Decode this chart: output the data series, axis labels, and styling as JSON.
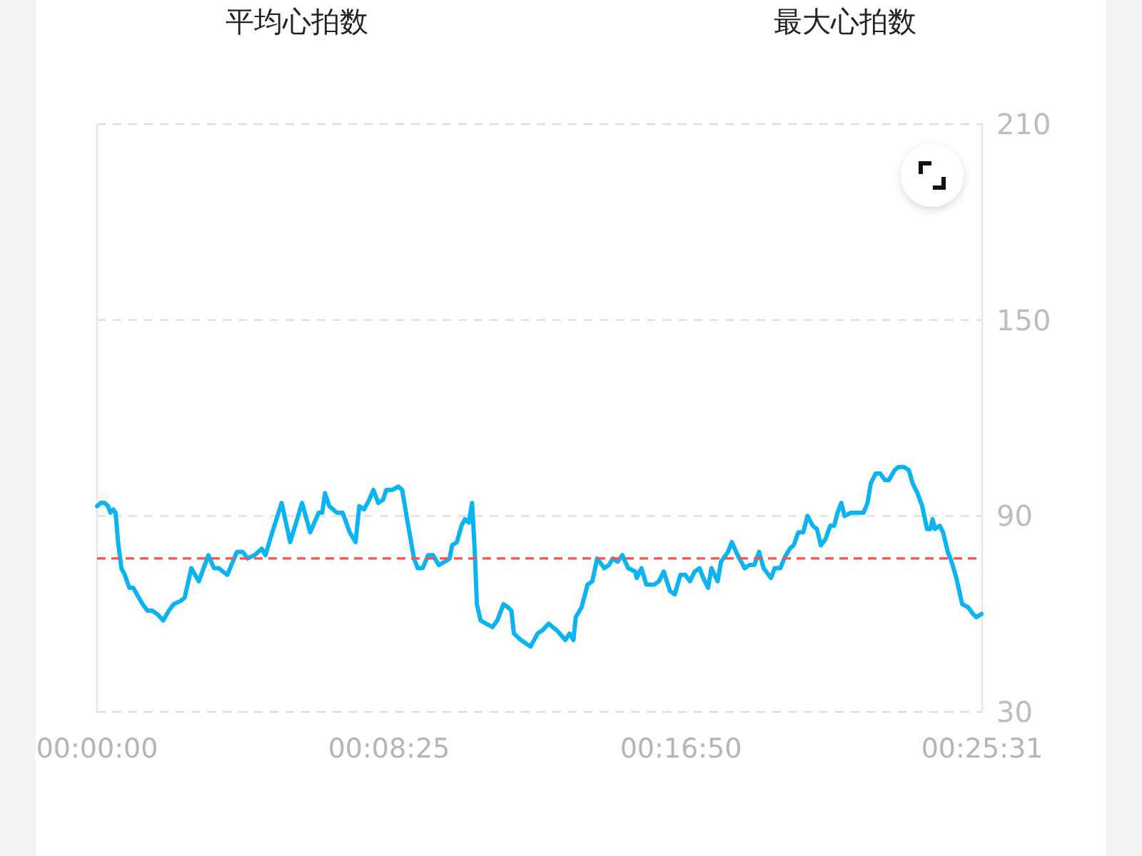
{
  "chart_data": {
    "type": "line",
    "annotations": [
      "平均心拍数",
      "最大心拍数"
    ],
    "x": [
      0,
      0.0018,
      0.0037,
      0.0053,
      0.0064,
      0.0078,
      0.0089,
      0.0101,
      0.0117,
      0.0133,
      0.0155,
      0.0174,
      0.0192,
      0.0219,
      0.0242,
      0.0265,
      0.0288,
      0.0318,
      0.0345,
      0.0368,
      0.0402,
      0.0421,
      0.0453,
      0.0489,
      0.0535,
      0.0562,
      0.0585,
      0.0604,
      0.0626,
      0.0672,
      0.0688,
      0.07,
      0.0723,
      0.0757,
      0.0791,
      0.0809,
      0.0837,
      0.0887,
      0.0928,
      0.0985,
      0.1024,
      0.1065,
      0.1082,
      0.1095,
      0.1116,
      0.1152,
      0.118,
      0.1214,
      0.1242,
      0.126,
      0.1283,
      0.1308,
      0.1328,
      0.1351,
      0.1374,
      0.139,
      0.142,
      0.1447,
      0.1466,
      0.1495,
      0.1523,
      0.1541,
      0.1564,
      0.1591,
      0.1614,
      0.1642,
      0.1671,
      0.1694,
      0.1706,
      0.1729,
      0.1751,
      0.1767,
      0.1786,
      0.1802,
      0.1815,
      0.1825,
      0.1843,
      0.187,
      0.19,
      0.1923,
      0.1953,
      0.1975,
      0.1991,
      0.2003,
      0.2037,
      0.2083,
      0.2117,
      0.214,
      0.217,
      0.2209,
      0.225,
      0.227,
      0.2289,
      0.23,
      0.2328,
      0.2357,
      0.238,
      0.2403,
      0.2437,
      0.246,
      0.2478,
      0.2501,
      0.2524,
      0.2552,
      0.2586,
      0.2593,
      0.2616,
      0.2639,
      0.2677,
      0.27,
      0.2723,
      0.2753,
      0.2776,
      0.2803,
      0.2826,
      0.2849,
      0.2872,
      0.2895,
      0.2913,
      0.2936,
      0.2952,
      0.2982,
      0.2998,
      0.3032,
      0.305,
      0.3078,
      0.3112,
      0.3135,
      0.3158,
      0.3181,
      0.3203,
      0.3238,
      0.3256,
      0.3283,
      0.3302,
      0.3329,
      0.3347,
      0.337,
      0.3393,
      0.3414,
      0.3439,
      0.3459,
      0.3478,
      0.3501,
      0.3523,
      0.3542,
      0.3558,
      0.3576,
      0.3592,
      0.3622,
      0.3654,
      0.3683,
      0.3702,
      0.3718,
      0.3741,
      0.3763,
      0.3786,
      0.3805,
      0.3832,
      0.3851,
      0.3878,
      0.3901,
      0.3919,
      0.3942,
      0.3965,
      0.3988,
      0.4004,
      0.4015,
      0.4026,
      0.4049,
      0.4065,
      0.4088,
      0.4106,
      0.4129,
      0.4157,
      0.4186,
      0.4209,
      0.4225,
      0.425
    ],
    "series": [
      {
        "color": "#0ab4f2",
        "values": [
          93,
          94,
          94,
          93,
          91,
          92,
          91,
          82,
          74,
          72,
          68,
          68,
          66,
          63,
          61,
          61,
          60,
          58,
          61,
          63,
          64,
          65,
          74,
          70,
          78,
          74,
          74,
          73,
          72,
          79,
          79,
          79,
          77,
          78,
          80,
          78,
          84,
          94,
          82,
          94,
          85,
          91,
          91,
          97,
          93,
          91,
          91,
          85,
          82,
          93,
          92,
          95,
          98,
          94,
          95,
          98,
          98,
          99,
          98,
          87,
          77,
          74,
          74,
          78,
          78,
          75,
          76,
          77,
          81,
          82,
          87,
          89,
          88,
          94,
          79,
          63,
          58,
          57,
          56,
          58,
          63,
          62,
          61,
          54,
          52,
          50,
          54,
          55,
          57,
          55,
          52,
          54,
          52,
          59,
          62,
          69,
          70,
          77,
          74,
          75,
          77,
          76,
          78,
          74,
          73,
          71,
          74,
          69,
          69,
          70,
          73,
          67,
          66,
          72,
          72,
          70,
          73,
          74,
          71,
          68,
          74,
          70,
          76,
          79,
          82,
          78,
          74,
          75,
          75,
          79,
          74,
          71,
          74,
          74,
          77,
          80,
          81,
          85,
          85,
          90,
          87,
          86,
          81,
          83,
          87,
          87,
          91,
          94,
          90,
          91,
          91,
          91,
          94,
          100,
          103,
          103,
          101,
          101,
          104,
          105,
          105,
          104,
          100,
          97,
          93,
          86,
          86,
          89,
          86,
          87,
          85,
          79,
          76,
          71,
          63,
          62,
          60,
          59,
          60
        ]
      }
    ],
    "xlim": [
      0,
      0.425278
    ],
    "xticks": [
      {
        "value": 0,
        "label": "00:00:00"
      },
      {
        "value": 0.140278,
        "label": "00:08:25"
      },
      {
        "value": 0.280556,
        "label": "00:16:50"
      },
      {
        "value": 0.425278,
        "label": "00:25:31"
      }
    ],
    "ylim": [
      30,
      210
    ],
    "yticks": [
      30,
      90,
      150,
      210
    ],
    "grid": "y",
    "ref_lines": [
      {
        "axis": "y",
        "value": 77,
        "color": "#ff4d4f",
        "line_style": "dashed"
      }
    ]
  }
}
